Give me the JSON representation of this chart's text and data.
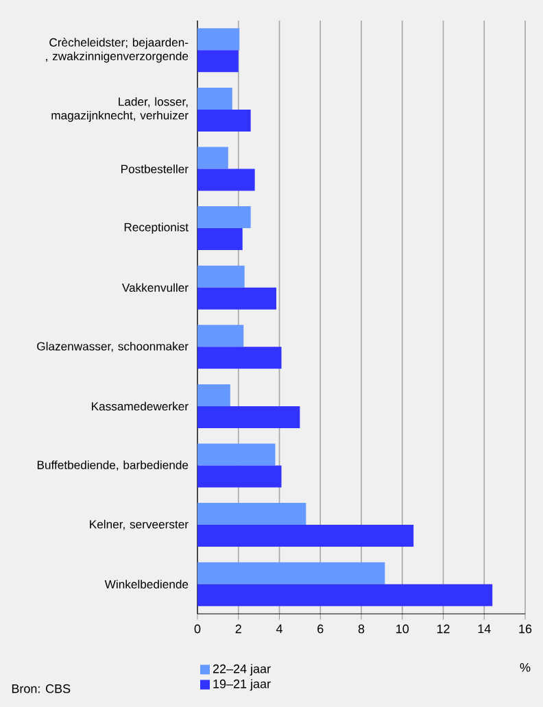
{
  "chart_data": {
    "type": "bar",
    "orientation": "horizontal",
    "xlabel": "%",
    "categories": [
      "Crècheleidster; bejaarden-, zwakzinnigenverzorgende",
      "Lader, losser, magazijnknecht, verhuizer",
      "Postbesteller",
      "Receptionist",
      "Vakkenvuller",
      "Glazenwasser, schoonmaker",
      "Kassamedewerker",
      "Buffetbediende, barbediende",
      "Kelner, serveerster",
      "Winkelbediende"
    ],
    "series": [
      {
        "name": "22–24 jaar",
        "color": "#6699ff",
        "values": [
          2.05,
          1.7,
          1.5,
          2.6,
          2.3,
          2.25,
          1.6,
          3.8,
          5.3,
          9.15
        ]
      },
      {
        "name": "19–21 jaar",
        "color": "#3333ff",
        "values": [
          2.0,
          2.6,
          2.8,
          2.2,
          3.85,
          4.1,
          5.0,
          4.1,
          10.55,
          14.4
        ]
      }
    ],
    "xlim": [
      0,
      16
    ],
    "xticks": [
      0,
      2,
      4,
      6,
      8,
      10,
      12,
      14,
      16
    ],
    "grid": "x",
    "legend": "bottom",
    "annotations": [
      "Bron: CBS"
    ]
  }
}
